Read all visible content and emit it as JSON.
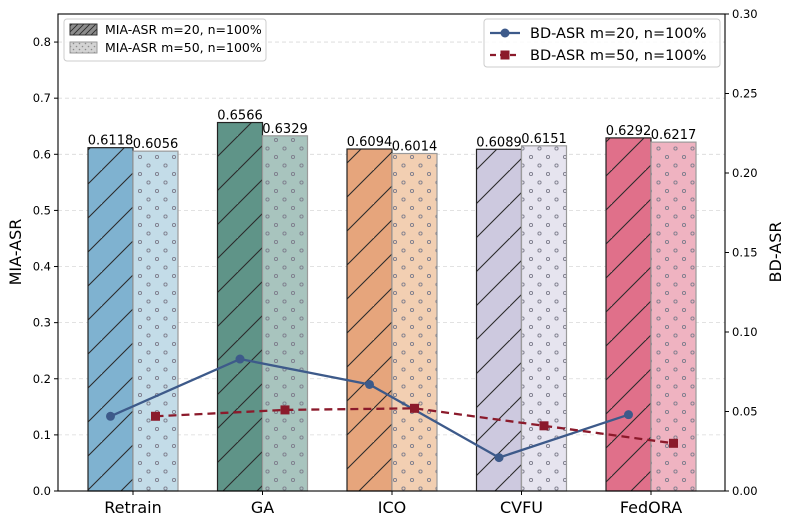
{
  "chart_data": {
    "type": "bar",
    "categories": [
      "Retrain",
      "GA",
      "ICO",
      "CVFU",
      "FedORA"
    ],
    "ylabel": "MIA-ASR",
    "ylabel_right": "BD-ASR",
    "ylim": [
      0,
      0.85
    ],
    "ylim_right": [
      0,
      0.3
    ],
    "yticks": [
      "0.0",
      "0.1",
      "0.2",
      "0.3",
      "0.4",
      "0.5",
      "0.6",
      "0.7",
      "0.8"
    ],
    "yticks_right": [
      "0.00",
      "0.05",
      "0.10",
      "0.15",
      "0.20",
      "0.25",
      "0.30"
    ],
    "grid": "horizontal dashed",
    "bar_series": [
      {
        "name": "MIA-ASR m=20, n=100%",
        "values": [
          0.6118,
          0.6566,
          0.6094,
          0.6089,
          0.6292
        ],
        "labels": [
          "0.6118",
          "0.6566",
          "0.6094",
          "0.6089",
          "0.6292"
        ],
        "pattern": "hatch"
      },
      {
        "name": "MIA-ASR m=50, n=100%",
        "values": [
          0.6056,
          0.6329,
          0.6014,
          0.6151,
          0.6217
        ],
        "labels": [
          "0.6056",
          "0.6329",
          "0.6014",
          "0.6151",
          "0.6217"
        ],
        "pattern": "dots"
      }
    ],
    "line_series": [
      {
        "name": "BD-ASR m=20, n=100%",
        "values": [
          0.047,
          0.083,
          0.067,
          0.021,
          0.048
        ],
        "color": "#3d5a8a",
        "marker": "circle",
        "style": "solid"
      },
      {
        "name": "BD-ASR m=50, n=100%",
        "values": [
          0.047,
          0.051,
          0.052,
          0.041,
          0.03
        ],
        "color": "#8b1a2b",
        "marker": "square",
        "style": "dashed"
      }
    ],
    "colors": {
      "primary": [
        "#7fb2d0",
        "#5f9488",
        "#e6a57c",
        "#cdc9df",
        "#e0708a"
      ],
      "secondary": [
        "#c3dce8",
        "#a8c4be",
        "#f2cfb2",
        "#e6e4ef",
        "#efb3c1"
      ]
    },
    "legend_left": "top-left",
    "legend_right": "top-right"
  }
}
